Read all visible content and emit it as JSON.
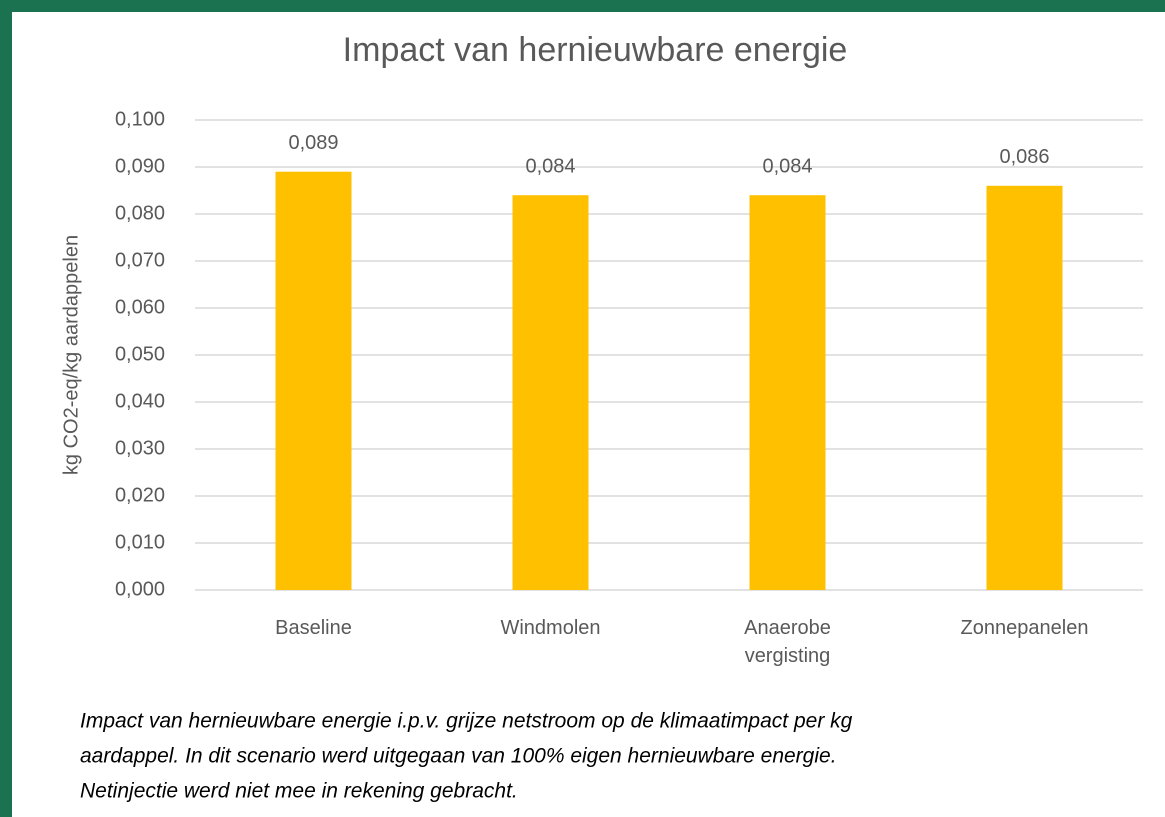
{
  "chart_data": {
    "type": "bar",
    "title": "Impact van hernieuwbare energie",
    "ylabel": "kg CO2-eq/kg aardappelen",
    "categories": [
      "Baseline",
      "Windmolen",
      "Anaerobe vergisting",
      "Zonnepanelen"
    ],
    "values": [
      0.089,
      0.084,
      0.084,
      0.086
    ],
    "value_labels": [
      "0,089",
      "0,084",
      "0,084",
      "0,086"
    ],
    "color": "#ffc000",
    "ylim": [
      0,
      0.1
    ],
    "yticks": [
      {
        "value": 0,
        "label": "0,000"
      },
      {
        "value": 0.01,
        "label": "0,010"
      },
      {
        "value": 0.02,
        "label": "0,020"
      },
      {
        "value": 0.03,
        "label": "0,030"
      },
      {
        "value": 0.04,
        "label": "0,040"
      },
      {
        "value": 0.05,
        "label": "0,050"
      },
      {
        "value": 0.06,
        "label": "0,060"
      },
      {
        "value": 0.07,
        "label": "0,070"
      },
      {
        "value": 0.08,
        "label": "0,080"
      },
      {
        "value": 0.09,
        "label": "0,090"
      },
      {
        "value": 0.1,
        "label": "0,100"
      }
    ],
    "grid": true,
    "caption": [
      "Impact van hernieuwbare energie i.p.v. grijze netstroom op de klimaatimpact per kg",
      "aardappel. In dit scenario werd uitgegaan van 100% eigen hernieuwbare energie.",
      "Netinjectie werd niet mee in rekening gebracht."
    ]
  }
}
